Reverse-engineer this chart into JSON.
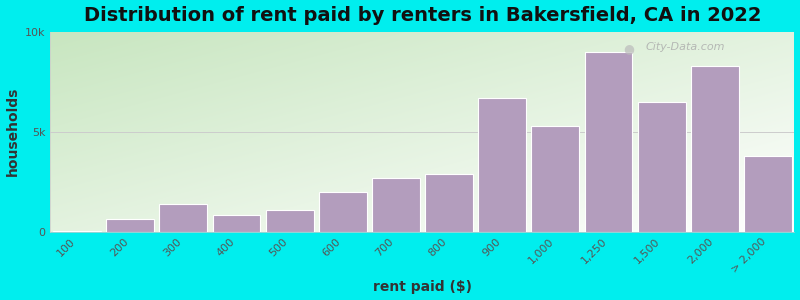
{
  "title": "Distribution of rent paid by renters in Bakersfield, CA in 2022",
  "xlabel": "rent paid ($)",
  "ylabel": "households",
  "figure_bg_color": "#00EEEE",
  "bar_color": "#b39dbd",
  "bar_edge_color": "#ffffff",
  "categories": [
    "100",
    "200",
    "300",
    "400",
    "500",
    "600",
    "700",
    "800",
    "900",
    "1,000",
    "1,250",
    "1,500",
    "2,000",
    "> 2,000"
  ],
  "values": [
    50,
    650,
    1400,
    850,
    1100,
    2000,
    2700,
    2900,
    6700,
    5300,
    9000,
    6500,
    8300,
    3800
  ],
  "ylim": [
    0,
    10000
  ],
  "yticks": [
    0,
    5000,
    10000
  ],
  "ytick_labels": [
    "0",
    "5k",
    "10k"
  ],
  "title_fontsize": 14,
  "axis_label_fontsize": 10,
  "tick_fontsize": 8,
  "watermark_text": "City-Data.com",
  "gradient_colors": [
    "#c8e6c0",
    "#f0f8e8",
    "#ffffff"
  ],
  "gradient_stops": [
    0.0,
    0.4,
    1.0
  ]
}
